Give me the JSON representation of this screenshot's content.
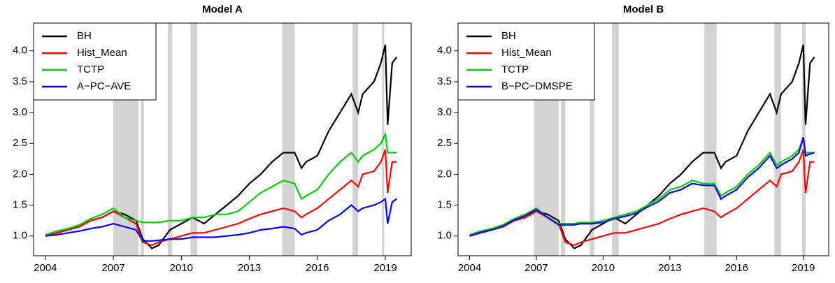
{
  "chart_data": [
    {
      "type": "line",
      "title": "Model A",
      "x": [
        2004,
        2004.5,
        2005,
        2005.5,
        2006,
        2006.5,
        2007,
        2007.5,
        2008,
        2008.3,
        2008.7,
        2009,
        2009.5,
        2010,
        2010.5,
        2011,
        2011.5,
        2012,
        2012.5,
        2013,
        2013.5,
        2014,
        2014.5,
        2015,
        2015.3,
        2015.5,
        2016,
        2016.5,
        2017,
        2017.5,
        2017.8,
        2018,
        2018.5,
        2018.8,
        2019,
        2019.1,
        2019.3,
        2019.5
      ],
      "series": [
        {
          "name": "BH",
          "color": "#000000",
          "values": [
            1.0,
            1.05,
            1.1,
            1.15,
            1.25,
            1.3,
            1.4,
            1.35,
            1.25,
            0.95,
            0.8,
            0.85,
            1.1,
            1.2,
            1.3,
            1.2,
            1.35,
            1.5,
            1.65,
            1.85,
            2.0,
            2.2,
            2.35,
            2.35,
            2.1,
            2.2,
            2.3,
            2.7,
            3.0,
            3.3,
            3.0,
            3.3,
            3.5,
            3.8,
            4.1,
            2.8,
            3.8,
            3.9
          ]
        },
        {
          "name": "Hist_Mean",
          "color": "#ff0000",
          "values": [
            1.0,
            1.05,
            1.1,
            1.15,
            1.25,
            1.3,
            1.4,
            1.3,
            1.2,
            0.9,
            0.85,
            0.9,
            0.95,
            1.0,
            1.05,
            1.05,
            1.1,
            1.15,
            1.2,
            1.28,
            1.35,
            1.4,
            1.45,
            1.4,
            1.3,
            1.35,
            1.45,
            1.6,
            1.75,
            1.9,
            1.8,
            2.0,
            2.05,
            2.2,
            2.4,
            1.7,
            2.2,
            2.2
          ]
        },
        {
          "name": "TCTP",
          "color": "#00cc00",
          "values": [
            1.02,
            1.08,
            1.12,
            1.18,
            1.28,
            1.35,
            1.45,
            1.3,
            1.25,
            1.22,
            1.22,
            1.22,
            1.25,
            1.25,
            1.3,
            1.3,
            1.35,
            1.35,
            1.4,
            1.55,
            1.7,
            1.8,
            1.9,
            1.85,
            1.6,
            1.65,
            1.75,
            2.0,
            2.2,
            2.35,
            2.2,
            2.3,
            2.4,
            2.5,
            2.65,
            2.35,
            2.35,
            2.35
          ]
        },
        {
          "name": "A−PC−AVE",
          "color": "#0000ff",
          "values": [
            1.0,
            1.02,
            1.05,
            1.08,
            1.12,
            1.15,
            1.2,
            1.15,
            1.1,
            0.92,
            0.92,
            0.93,
            0.95,
            0.95,
            0.98,
            0.98,
            0.98,
            1.0,
            1.02,
            1.05,
            1.1,
            1.12,
            1.15,
            1.12,
            1.02,
            1.05,
            1.1,
            1.25,
            1.35,
            1.5,
            1.4,
            1.45,
            1.5,
            1.55,
            1.6,
            1.2,
            1.55,
            1.6
          ]
        }
      ],
      "shaded_periods": [
        [
          2007.0,
          2008.1
        ],
        [
          2008.2,
          2008.35
        ],
        [
          2009.4,
          2009.6
        ],
        [
          2010.4,
          2010.7
        ],
        [
          2014.45,
          2015.0
        ],
        [
          2017.55,
          2017.8
        ],
        [
          2018.85,
          2018.95
        ]
      ],
      "shade_color": "#d3d3d3",
      "xlim": [
        2003.48,
        2020.14
      ],
      "xticks": [
        2004,
        2007,
        2010,
        2013,
        2016,
        2019
      ],
      "ylim": [
        0.68,
        4.45
      ],
      "yticks": [
        {
          "value": 1,
          "label": "1.0"
        },
        1.5,
        {
          "value": 2,
          "label": "2.0"
        },
        2.5,
        {
          "value": 3,
          "label": "3.0"
        },
        3.5,
        {
          "value": 4,
          "label": "4.0"
        }
      ],
      "legend": "top-left"
    },
    {
      "type": "line",
      "title": "Model B",
      "x": [
        2004,
        2004.5,
        2005,
        2005.5,
        2006,
        2006.5,
        2007,
        2007.5,
        2008,
        2008.3,
        2008.7,
        2009,
        2009.5,
        2010,
        2010.5,
        2011,
        2011.5,
        2012,
        2012.5,
        2013,
        2013.5,
        2014,
        2014.5,
        2015,
        2015.3,
        2015.5,
        2016,
        2016.5,
        2017,
        2017.5,
        2017.8,
        2018,
        2018.5,
        2018.8,
        2019,
        2019.1,
        2019.3,
        2019.5
      ],
      "series": [
        {
          "name": "BH",
          "color": "#000000",
          "values": [
            1.0,
            1.05,
            1.1,
            1.15,
            1.25,
            1.3,
            1.4,
            1.35,
            1.25,
            0.95,
            0.8,
            0.85,
            1.1,
            1.2,
            1.3,
            1.2,
            1.35,
            1.5,
            1.65,
            1.85,
            2.0,
            2.2,
            2.35,
            2.35,
            2.1,
            2.2,
            2.3,
            2.7,
            3.0,
            3.3,
            3.0,
            3.3,
            3.5,
            3.8,
            4.1,
            2.8,
            3.8,
            3.9
          ]
        },
        {
          "name": "Hist_Mean",
          "color": "#ff0000",
          "values": [
            1.0,
            1.05,
            1.1,
            1.15,
            1.25,
            1.3,
            1.4,
            1.3,
            1.2,
            0.9,
            0.85,
            0.9,
            0.95,
            1.0,
            1.05,
            1.05,
            1.1,
            1.15,
            1.2,
            1.28,
            1.35,
            1.4,
            1.45,
            1.4,
            1.3,
            1.35,
            1.45,
            1.6,
            1.75,
            1.9,
            1.8,
            2.0,
            2.05,
            2.2,
            2.4,
            1.7,
            2.2,
            2.2
          ]
        },
        {
          "name": "TCTP",
          "color": "#00cc00",
          "values": [
            1.02,
            1.08,
            1.12,
            1.18,
            1.28,
            1.35,
            1.45,
            1.3,
            1.2,
            1.2,
            1.2,
            1.22,
            1.22,
            1.25,
            1.3,
            1.35,
            1.4,
            1.5,
            1.6,
            1.75,
            1.8,
            1.9,
            1.85,
            1.85,
            1.65,
            1.7,
            1.8,
            2.0,
            2.15,
            2.35,
            2.15,
            2.2,
            2.3,
            2.4,
            2.6,
            2.35,
            2.35,
            2.35
          ]
        },
        {
          "name": "B−PC−DMSPE",
          "color": "#0000ff",
          "values": [
            1.0,
            1.06,
            1.1,
            1.16,
            1.26,
            1.33,
            1.43,
            1.3,
            1.18,
            1.18,
            1.18,
            1.2,
            1.2,
            1.22,
            1.28,
            1.32,
            1.37,
            1.47,
            1.56,
            1.7,
            1.75,
            1.85,
            1.82,
            1.82,
            1.6,
            1.65,
            1.75,
            1.95,
            2.1,
            2.3,
            2.1,
            2.15,
            2.25,
            2.35,
            2.6,
            2.3,
            2.33,
            2.35
          ]
        }
      ],
      "shaded_periods": [
        [
          2006.9,
          2008.0
        ],
        [
          2008.1,
          2008.3
        ],
        [
          2009.4,
          2009.6
        ],
        [
          2010.4,
          2010.7
        ],
        [
          2014.55,
          2015.1
        ],
        [
          2017.7,
          2018.0
        ],
        [
          2018.95,
          2019.1
        ]
      ],
      "shade_color": "#d3d3d3",
      "xlim": [
        2003.48,
        2020.14
      ],
      "xticks": [
        2004,
        2007,
        2010,
        2013,
        2016,
        2019
      ],
      "ylim": [
        0.68,
        4.45
      ],
      "yticks": [
        {
          "value": 1,
          "label": "1.0"
        },
        1.5,
        {
          "value": 2,
          "label": "2.0"
        },
        2.5,
        {
          "value": 3,
          "label": "3.0"
        },
        3.5,
        {
          "value": 4,
          "label": "4.0"
        }
      ],
      "legend": "top-left"
    }
  ]
}
